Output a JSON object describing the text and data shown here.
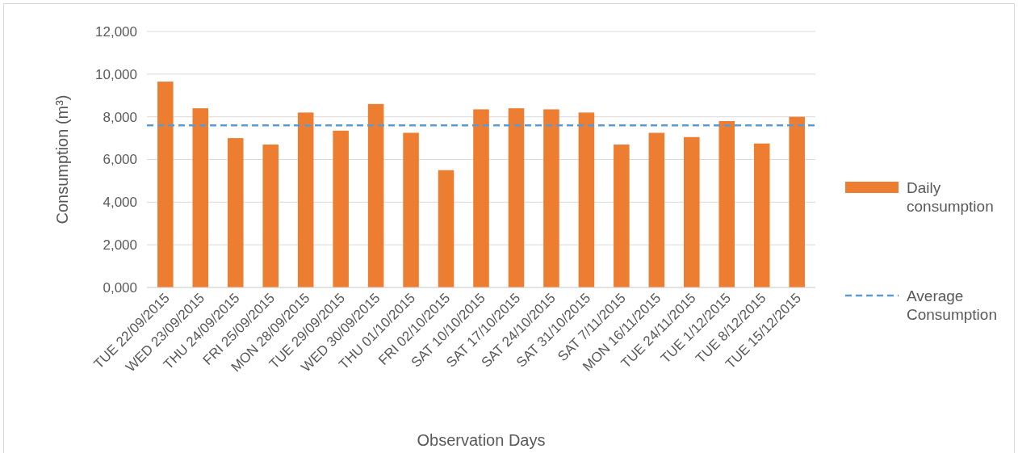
{
  "chart_data": {
    "type": "bar",
    "xlabel": "Observation Days",
    "ylabel": "Consumption (m³)",
    "categories": [
      "TUE 22/09/2015",
      "WED 23/09/2015",
      "THU 24/09/2015",
      "FRI 25/09/2015",
      "MON 28/09/2015",
      "TUE 29/09/2015",
      "WED 30/09/2015",
      "THU 01/10/2015",
      "FRI 02/10/2015",
      "SAT 10/10/2015",
      "SAT 17/10/2015",
      "SAT 24/10/2015",
      "SAT 31/10/2015",
      "SAT 7/11/2015",
      "MON 16/11/2015",
      "TUE 24/11/2015",
      "TUE 1/12/2015",
      "TUE 8/12/2015",
      "TUE 15/12/2015"
    ],
    "series": [
      {
        "name": "Daily consumption",
        "color": "#ed7d31",
        "values": [
          9650,
          8400,
          7000,
          6700,
          8200,
          7350,
          8600,
          7250,
          5500,
          8350,
          8400,
          8350,
          8200,
          6700,
          7250,
          7050,
          7800,
          6750,
          8000
        ]
      }
    ],
    "ylim": [
      0,
      12000
    ],
    "yticks": [
      {
        "value": 0,
        "label": "0,000"
      },
      {
        "value": 2000,
        "label": "2,000"
      },
      {
        "value": 4000,
        "label": "4,000"
      },
      {
        "value": 6000,
        "label": "6,000"
      },
      {
        "value": 8000,
        "label": "8,000"
      },
      {
        "value": 10000,
        "label": "10,000"
      },
      {
        "value": 12000,
        "label": "12,000"
      }
    ],
    "grid": "y",
    "legend": "right",
    "ref_lines": [
      {
        "axis": "y",
        "value": 7600,
        "label": "Average Consumption",
        "color": "#5b9bd5",
        "line_style": "dashed"
      }
    ]
  }
}
